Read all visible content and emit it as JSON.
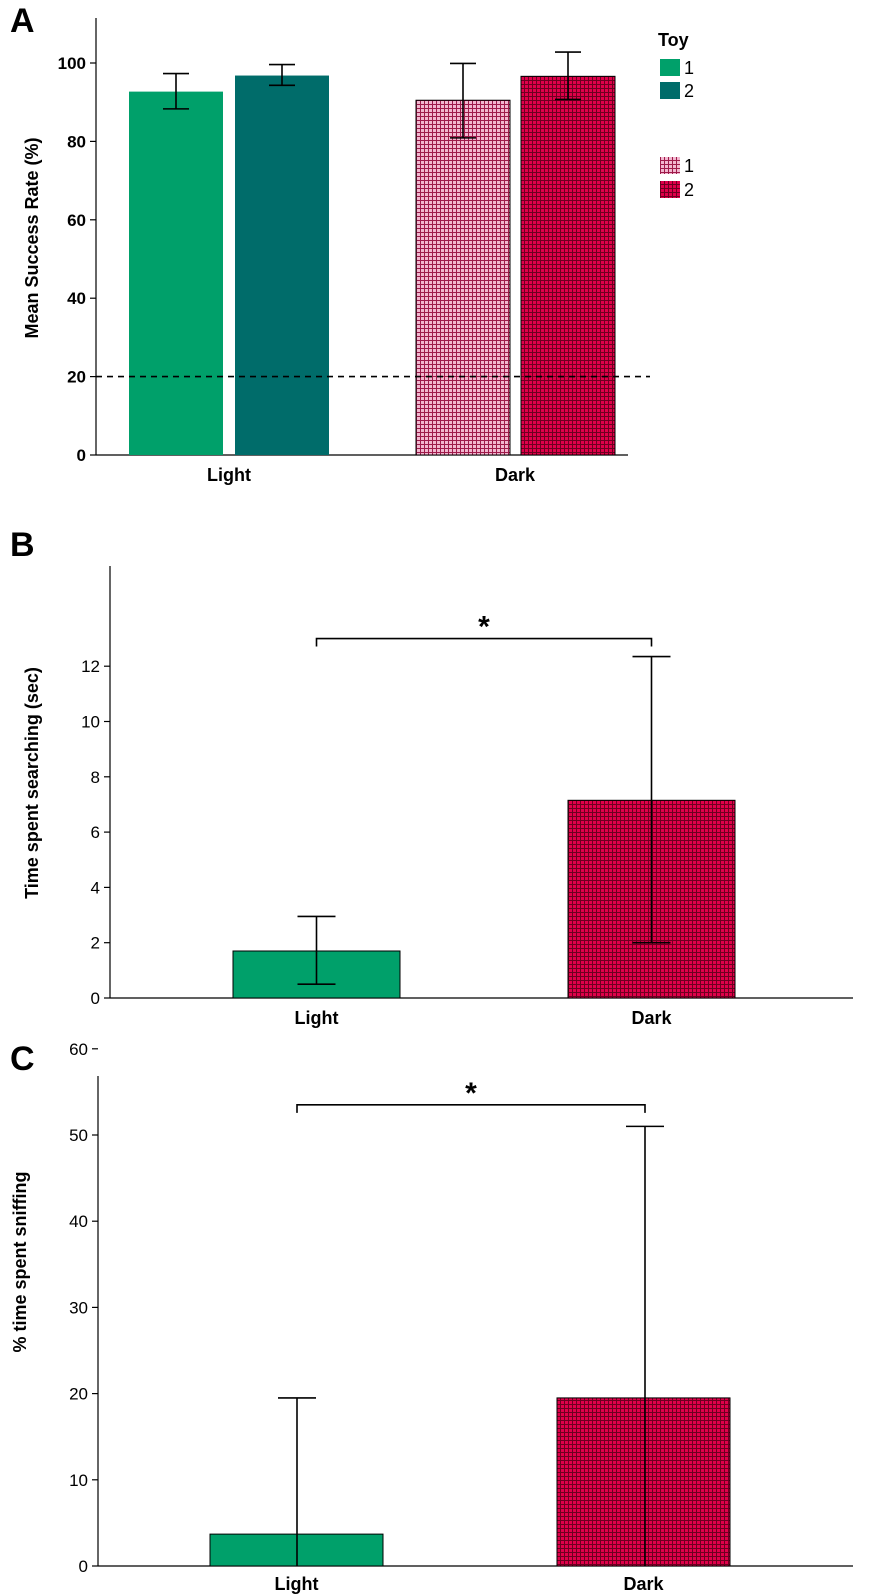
{
  "colors": {
    "light_toy1": "#00a06a",
    "light_toy2": "#006c6a",
    "dark_toy1_bg": "#f2b7cf",
    "dark_toy1_grid": "#9e1a4a",
    "dark_toy2_bg": "#e0004a",
    "dark_toy2_grid": "#6e0020",
    "axis": "#000000"
  },
  "chart_data": [
    {
      "panel": "A",
      "type": "bar",
      "ylabel": "Mean Success Rate (%)",
      "ylim": [
        0,
        110
      ],
      "yticks": [
        0,
        20,
        40,
        60,
        80,
        100
      ],
      "categories": [
        "Light",
        "Dark"
      ],
      "legend": {
        "title": "Toy",
        "position": "top-right",
        "entries": [
          "1",
          "2",
          "1",
          "2"
        ]
      },
      "series": [
        {
          "name": "1",
          "category": "Light",
          "value": 92.7,
          "err_low": 88.3,
          "err_high": 97.3
        },
        {
          "name": "2",
          "category": "Light",
          "value": 96.8,
          "err_low": 94.3,
          "err_high": 99.6
        },
        {
          "name": "1",
          "category": "Dark",
          "value": 90.5,
          "err_low": 80.9,
          "err_high": 99.9
        },
        {
          "name": "2",
          "category": "Dark",
          "value": 96.6,
          "err_low": 90.7,
          "err_high": 102.8
        }
      ],
      "reference_line": 20
    },
    {
      "panel": "B",
      "type": "bar",
      "ylabel": "Time spent searching (sec)",
      "ylim": [
        0,
        14
      ],
      "yticks": [
        0,
        2,
        4,
        6,
        8,
        10,
        12
      ],
      "categories": [
        "Light",
        "Dark"
      ],
      "values": [
        1.7,
        7.15
      ],
      "err_low": [
        0.5,
        2.0
      ],
      "err_high": [
        2.95,
        12.35
      ],
      "significance": {
        "label": "*",
        "between": [
          "Light",
          "Dark"
        ],
        "y": 13.0
      }
    },
    {
      "panel": "C",
      "type": "bar",
      "ylabel": "% time spent sniffing",
      "ylim": [
        0,
        66
      ],
      "yticks": [
        0,
        10,
        20,
        30,
        40,
        50,
        60
      ],
      "categories": [
        "Light",
        "Dark"
      ],
      "values": [
        3.7,
        19.5
      ],
      "err_low": [
        0,
        0
      ],
      "err_high": [
        19.5,
        51.0
      ],
      "significance": {
        "label": "*",
        "between": [
          "Light",
          "Dark"
        ],
        "y": 53.5
      }
    }
  ]
}
